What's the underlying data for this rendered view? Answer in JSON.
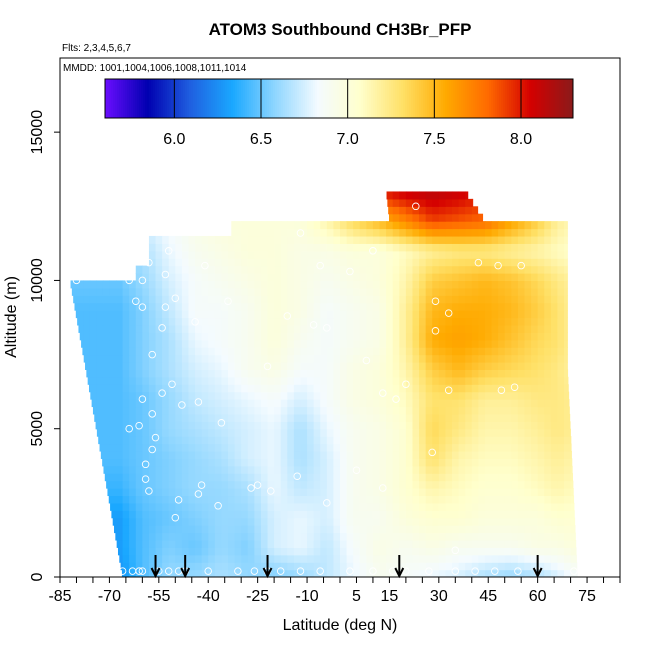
{
  "chart_data": {
    "type": "heatmap",
    "title": "ATOM3 Southbound CH3Br_PFP",
    "flights_label": "Flts: 2,3,4,5,6,7",
    "dates_label": "MMDD: 1001,1004,1006,1008,1011,1014",
    "xlabel": "Latitude (deg N)",
    "ylabel": "Altitude (m)",
    "xlim": [
      -85,
      85
    ],
    "ylim": [
      0,
      17500
    ],
    "x_ticks": [
      "-85",
      "-70",
      "-55",
      "-40",
      "-25",
      "-10",
      "5",
      "15",
      "30",
      "45",
      "60",
      "75"
    ],
    "x_tick_values": [
      -85,
      -70,
      -55,
      -40,
      -25,
      -10,
      5,
      15,
      30,
      45,
      60,
      75
    ],
    "y_ticks": [
      "0",
      "5000",
      "10000",
      "15000"
    ],
    "y_tick_values": [
      0,
      5000,
      10000,
      15000
    ],
    "colorbar": {
      "range": [
        5.6,
        8.3
      ],
      "ticks": [
        "6.0",
        "6.5",
        "7.0",
        "7.5",
        "8.0"
      ],
      "tick_values": [
        6.0,
        6.5,
        7.0,
        7.5,
        8.0
      ],
      "colors": [
        "#6a0dff",
        "#0000b0",
        "#1f5fe0",
        "#1aa8ff",
        "#8fd6ff",
        "#f4fbff",
        "#ffffcc",
        "#ffe066",
        "#ffaa00",
        "#ff6a00",
        "#d40000",
        "#8b1a1a"
      ]
    },
    "profile_markers_lat": [
      -56,
      -47,
      -22,
      18,
      60
    ],
    "grid": {
      "lat": [
        -67,
        -60,
        -52,
        -44,
        -36,
        -28,
        -20,
        -12,
        -4,
        4,
        12,
        20,
        28,
        36,
        44,
        52,
        60,
        66,
        72
      ],
      "alt": [
        0,
        1000,
        2000,
        3000,
        4000,
        5000,
        6000,
        7000,
        8000,
        9000,
        10000,
        11000,
        12000,
        13000
      ],
      "values": [
        [
          6.25,
          6.45,
          6.6,
          6.6,
          6.65,
          6.6,
          6.55,
          6.6,
          6.7,
          6.8,
          6.9,
          6.85,
          6.8,
          6.75,
          6.65,
          6.6,
          6.65,
          6.75,
          6.85
        ],
        [
          6.3,
          6.45,
          6.55,
          6.5,
          6.6,
          6.55,
          6.75,
          6.8,
          6.7,
          6.85,
          6.95,
          6.9,
          6.95,
          6.9,
          6.9,
          6.9,
          6.95,
          6.95,
          7.0
        ],
        [
          6.3,
          6.45,
          6.5,
          6.55,
          6.6,
          6.6,
          6.75,
          6.8,
          6.75,
          6.9,
          6.9,
          7.0,
          7.05,
          7.05,
          7.0,
          7.0,
          7.0,
          7.05,
          7.05
        ],
        [
          6.4,
          6.5,
          6.55,
          6.6,
          6.6,
          6.65,
          6.8,
          6.7,
          6.75,
          6.9,
          6.95,
          7.05,
          7.15,
          7.1,
          7.05,
          7.05,
          7.1,
          7.15,
          7.1
        ],
        [
          6.45,
          6.5,
          6.55,
          6.6,
          6.65,
          6.75,
          6.8,
          6.65,
          6.75,
          6.9,
          6.95,
          7.05,
          7.3,
          7.15,
          7.1,
          7.1,
          7.15,
          7.2,
          7.15
        ],
        [
          6.45,
          6.5,
          6.6,
          6.65,
          6.7,
          6.75,
          6.8,
          6.65,
          6.8,
          6.9,
          6.95,
          7.05,
          7.35,
          7.25,
          7.15,
          7.15,
          7.2,
          7.25,
          7.2
        ],
        [
          6.45,
          6.5,
          6.6,
          6.7,
          6.75,
          6.8,
          6.85,
          6.75,
          6.85,
          6.95,
          7.0,
          7.1,
          7.3,
          7.3,
          7.2,
          7.2,
          7.25,
          7.25,
          7.2
        ],
        [
          6.45,
          6.55,
          6.65,
          6.75,
          6.8,
          6.9,
          6.95,
          6.85,
          6.85,
          6.95,
          7.0,
          7.15,
          7.4,
          7.5,
          7.4,
          7.35,
          7.3,
          7.25,
          7.15
        ],
        [
          6.45,
          6.55,
          6.65,
          6.8,
          6.85,
          6.9,
          7.0,
          6.9,
          6.85,
          6.9,
          6.95,
          7.2,
          7.55,
          7.6,
          7.55,
          7.45,
          7.35,
          7.3,
          7.15
        ],
        [
          6.45,
          6.55,
          6.7,
          6.85,
          6.85,
          6.9,
          7.0,
          6.95,
          6.85,
          6.9,
          6.95,
          7.2,
          7.5,
          7.55,
          7.55,
          7.5,
          7.4,
          7.3,
          7.15
        ],
        [
          6.5,
          6.6,
          6.75,
          6.85,
          6.9,
          6.95,
          7.0,
          6.95,
          6.9,
          6.95,
          7.0,
          7.15,
          7.4,
          7.45,
          7.5,
          7.45,
          7.35,
          7.25,
          7.15
        ],
        [
          6.6,
          6.65,
          6.8,
          6.9,
          6.95,
          7.0,
          7.0,
          6.95,
          6.95,
          7.0,
          7.0,
          7.1,
          7.2,
          7.25,
          7.25,
          7.2,
          7.15,
          7.1,
          7.05
        ],
        [
          6.7,
          6.75,
          6.85,
          6.95,
          7.0,
          7.0,
          7.0,
          7.0,
          7.15,
          7.35,
          7.5,
          7.7,
          7.9,
          7.85,
          7.8,
          7.6,
          7.4,
          7.2,
          7.1
        ],
        [
          6.75,
          6.8,
          6.9,
          7.0,
          7.05,
          7.05,
          7.1,
          7.3,
          7.6,
          7.8,
          8.0,
          8.1,
          8.15,
          8.1,
          8.0,
          7.8,
          7.5,
          7.3,
          7.1
        ]
      ]
    },
    "sample_points": [
      {
        "lat": -66,
        "alt": 200
      },
      {
        "lat": -63,
        "alt": 200
      },
      {
        "lat": -61,
        "alt": 200
      },
      {
        "lat": -60,
        "alt": 200
      },
      {
        "lat": -55,
        "alt": 200
      },
      {
        "lat": -52,
        "alt": 200
      },
      {
        "lat": -49,
        "alt": 200
      },
      {
        "lat": -47,
        "alt": 200
      },
      {
        "lat": -40,
        "alt": 200
      },
      {
        "lat": -31,
        "alt": 200
      },
      {
        "lat": -26,
        "alt": 200
      },
      {
        "lat": -22,
        "alt": 200
      },
      {
        "lat": -18,
        "alt": 200
      },
      {
        "lat": -12,
        "alt": 200
      },
      {
        "lat": -6,
        "alt": 200
      },
      {
        "lat": 3,
        "alt": 200
      },
      {
        "lat": 10,
        "alt": 200
      },
      {
        "lat": 16,
        "alt": 200
      },
      {
        "lat": 20,
        "alt": 200
      },
      {
        "lat": 27,
        "alt": 200
      },
      {
        "lat": 35,
        "alt": 200
      },
      {
        "lat": 41,
        "alt": 200
      },
      {
        "lat": 47,
        "alt": 200
      },
      {
        "lat": 54,
        "alt": 200
      },
      {
        "lat": 60,
        "alt": 200
      },
      {
        "lat": 71,
        "alt": 200
      },
      {
        "lat": 35,
        "alt": 900
      },
      {
        "lat": -50,
        "alt": 2000
      },
      {
        "lat": -49,
        "alt": 2600
      },
      {
        "lat": -43,
        "alt": 2800
      },
      {
        "lat": -42,
        "alt": 3100
      },
      {
        "lat": -37,
        "alt": 2400
      },
      {
        "lat": -58,
        "alt": 2900
      },
      {
        "lat": -59,
        "alt": 3300
      },
      {
        "lat": -25,
        "alt": 3100
      },
      {
        "lat": -27,
        "alt": 3000
      },
      {
        "lat": -21,
        "alt": 2900
      },
      {
        "lat": -13,
        "alt": 3400
      },
      {
        "lat": -4,
        "alt": 2500
      },
      {
        "lat": 5,
        "alt": 3600
      },
      {
        "lat": 13,
        "alt": 3000
      },
      {
        "lat": -64,
        "alt": 5000
      },
      {
        "lat": -61,
        "alt": 5100
      },
      {
        "lat": -57,
        "alt": 5500
      },
      {
        "lat": -54,
        "alt": 6200
      },
      {
        "lat": -51,
        "alt": 6500
      },
      {
        "lat": -48,
        "alt": 5800
      },
      {
        "lat": -43,
        "alt": 5900
      },
      {
        "lat": -36,
        "alt": 5200
      },
      {
        "lat": -60,
        "alt": 6000
      },
      {
        "lat": -57,
        "alt": 4300
      },
      {
        "lat": -56,
        "alt": 4700
      },
      {
        "lat": -59,
        "alt": 3800
      },
      {
        "lat": 13,
        "alt": 6200
      },
      {
        "lat": 17,
        "alt": 6000
      },
      {
        "lat": 20,
        "alt": 6500
      },
      {
        "lat": 33,
        "alt": 6300
      },
      {
        "lat": 49,
        "alt": 6300
      },
      {
        "lat": 53,
        "alt": 6400
      },
      {
        "lat": 28,
        "alt": 4200
      },
      {
        "lat": -57,
        "alt": 7500
      },
      {
        "lat": -54,
        "alt": 8400
      },
      {
        "lat": -44,
        "alt": 8600
      },
      {
        "lat": -34,
        "alt": 9300
      },
      {
        "lat": -16,
        "alt": 8800
      },
      {
        "lat": -8,
        "alt": 8500
      },
      {
        "lat": -4,
        "alt": 8400
      },
      {
        "lat": 29,
        "alt": 9300
      },
      {
        "lat": 33,
        "alt": 8900
      },
      {
        "lat": -62,
        "alt": 9300
      },
      {
        "lat": -60,
        "alt": 9100
      },
      {
        "lat": -53,
        "alt": 9100
      },
      {
        "lat": -50,
        "alt": 9400
      },
      {
        "lat": -60,
        "alt": 10000
      },
      {
        "lat": -64,
        "alt": 10000
      },
      {
        "lat": -80,
        "alt": 10000
      },
      {
        "lat": -58,
        "alt": 10600
      },
      {
        "lat": -53,
        "alt": 10200
      },
      {
        "lat": -41,
        "alt": 10500
      },
      {
        "lat": -6,
        "alt": 10500
      },
      {
        "lat": 3,
        "alt": 10300
      },
      {
        "lat": 10,
        "alt": 11000
      },
      {
        "lat": 42,
        "alt": 10600
      },
      {
        "lat": 48,
        "alt": 10500
      },
      {
        "lat": 55,
        "alt": 10500
      },
      {
        "lat": -52,
        "alt": 11000
      },
      {
        "lat": -12,
        "alt": 11600
      },
      {
        "lat": 23,
        "alt": 12500
      },
      {
        "lat": 8,
        "alt": 7300
      },
      {
        "lat": 29,
        "alt": 8300
      },
      {
        "lat": -22,
        "alt": 7100
      }
    ]
  }
}
